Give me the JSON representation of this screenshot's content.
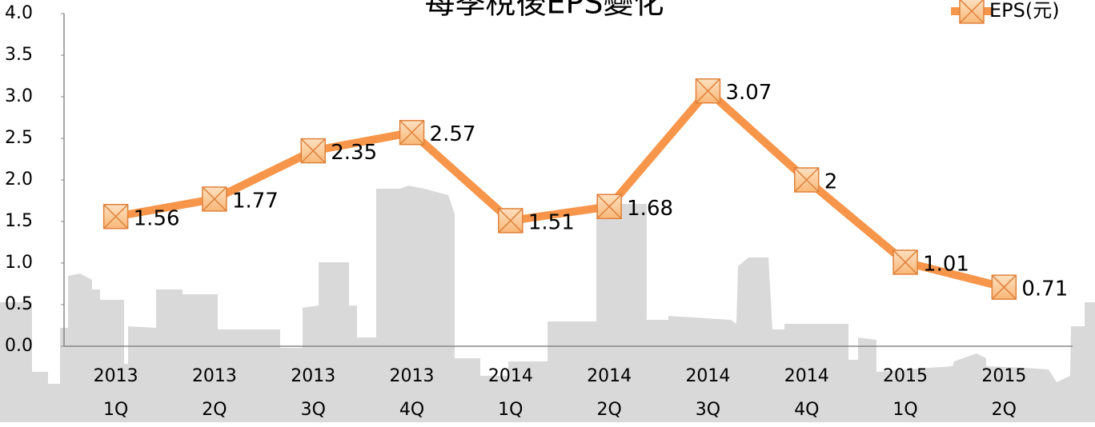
{
  "chart_data": {
    "type": "line",
    "title": "每季稅後EPS變化",
    "categories": [
      "2013\n1Q",
      "2013\n2Q",
      "2013\n3Q",
      "2013\n4Q",
      "2014\n1Q",
      "2014\n2Q",
      "2014\n3Q",
      "2014\n4Q",
      "2015\n1Q",
      "2015\n2Q"
    ],
    "series": [
      {
        "name": "EPS(元)",
        "color": "#f7964a",
        "values": [
          1.56,
          1.77,
          2.35,
          2.57,
          1.51,
          1.68,
          3.07,
          2,
          1.01,
          0.71
        ]
      }
    ],
    "ylim": [
      0,
      4
    ],
    "yticks": [
      {
        "value": 0,
        "label": "0.0"
      },
      0.5,
      {
        "value": 1,
        "label": "1.0"
      },
      1.5,
      {
        "value": 2,
        "label": "2.0"
      },
      2.5,
      {
        "value": 3,
        "label": "3.0"
      },
      3.5,
      {
        "value": 4,
        "label": "4.0"
      }
    ],
    "legend": "top-right"
  }
}
